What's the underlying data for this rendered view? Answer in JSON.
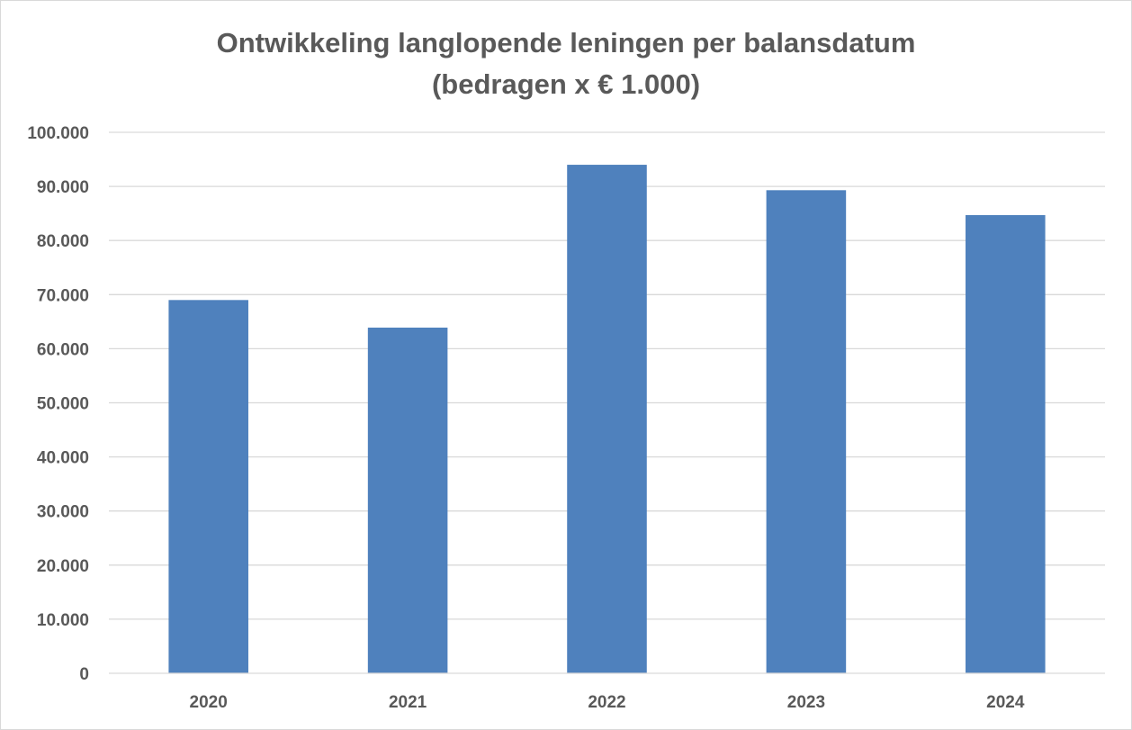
{
  "chart_data": {
    "type": "bar",
    "title_lines": [
      "Ontwikkeling langlopende leningen per balansdatum",
      "(bedragen x € 1.000)"
    ],
    "xlabel": "",
    "ylabel": "",
    "categories": [
      "2020",
      "2021",
      "2022",
      "2023",
      "2024"
    ],
    "values": [
      69000,
      63900,
      94000,
      89300,
      84700
    ],
    "ylim": [
      0,
      100000
    ],
    "yticks": [
      0,
      10000,
      20000,
      30000,
      40000,
      50000,
      60000,
      70000,
      80000,
      90000,
      100000
    ],
    "ytick_labels": [
      "0",
      "10.000",
      "20.000",
      "30.000",
      "40.000",
      "50.000",
      "60.000",
      "70.000",
      "80.000",
      "90.000",
      "100.000"
    ],
    "grid": true,
    "legend": "none",
    "bar_color": "#4f81bd",
    "text_color": "#595959",
    "grid_color": "#d9d9d9"
  }
}
